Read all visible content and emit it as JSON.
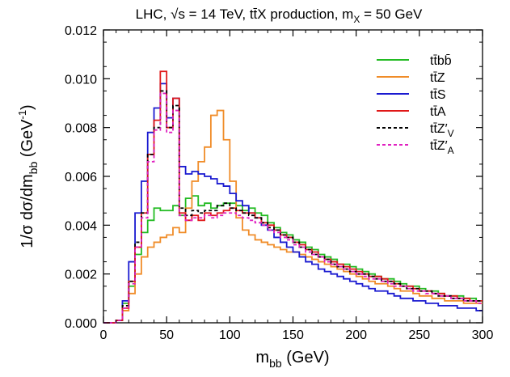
{
  "chart_data": {
    "type": "line",
    "title": "LHC,  √s = 14 TeV,  tt̄X production,  m_X = 50 GeV",
    "title_parts": {
      "prefix": "LHC,  ",
      "sqrt": "√",
      "s_eq": "s = 14 TeV,  tt̄X production,  m",
      "sub": "X",
      "suffix": " = 50 GeV"
    },
    "xlabel": {
      "main": "m",
      "sub": "bb",
      "unit": "  (GeV)"
    },
    "ylabel": {
      "main": "1/σ dσ/dm",
      "sub": "bb",
      "unit": "  (GeV",
      "sup": "-1",
      "close": ")"
    },
    "xlim": [
      0,
      300
    ],
    "ylim": [
      0,
      0.012
    ],
    "xticks": [
      "0",
      "50",
      "100",
      "150",
      "200",
      "250",
      "300"
    ],
    "yticks": [
      "0.000",
      "0.002",
      "0.004",
      "0.006",
      "0.008",
      "0.010",
      "0.012"
    ],
    "x_edges": [
      0,
      5,
      10,
      15,
      20,
      25,
      30,
      35,
      40,
      45,
      50,
      55,
      60,
      65,
      70,
      75,
      80,
      85,
      90,
      95,
      100,
      105,
      110,
      115,
      120,
      125,
      130,
      135,
      140,
      145,
      150,
      155,
      160,
      165,
      170,
      175,
      180,
      185,
      190,
      195,
      200,
      205,
      210,
      215,
      220,
      225,
      230,
      235,
      240,
      245,
      250,
      255,
      260,
      265,
      270,
      275,
      280,
      285,
      290,
      295,
      300
    ],
    "legend_position": "top-right",
    "grid": false,
    "series": [
      {
        "name": "tt̄bb̄",
        "color": "#22bb22",
        "dash": "solid",
        "values": [
          0,
          0,
          0.0001,
          0.0008,
          0.0015,
          0.0028,
          0.0037,
          0.0042,
          0.0047,
          0.0046,
          0.0046,
          0.0048,
          0.0044,
          0.0051,
          0.0052,
          0.0048,
          0.0049,
          0.0047,
          0.0048,
          0.0049,
          0.0049,
          0.0048,
          0.0046,
          0.0047,
          0.0045,
          0.0044,
          0.0041,
          0.0039,
          0.0037,
          0.0036,
          0.0034,
          0.0033,
          0.0031,
          0.003,
          0.0028,
          0.0027,
          0.0026,
          0.0024,
          0.0024,
          0.0023,
          0.0022,
          0.0021,
          0.002,
          0.0019,
          0.0018,
          0.0018,
          0.0017,
          0.0016,
          0.0015,
          0.0015,
          0.0014,
          0.0013,
          0.0013,
          0.0012,
          0.0011,
          0.0011,
          0.0011,
          0.001,
          0.001,
          0.0009
        ]
      },
      {
        "name": "tt̄Z",
        "color": "#f08c28",
        "dash": "solid",
        "values": [
          0,
          0,
          0.0001,
          0.0005,
          0.0012,
          0.002,
          0.0027,
          0.0031,
          0.0033,
          0.0035,
          0.0036,
          0.0039,
          0.0037,
          0.0047,
          0.0058,
          0.0066,
          0.0072,
          0.0085,
          0.0087,
          0.0075,
          0.0058,
          0.0043,
          0.0038,
          0.0036,
          0.0034,
          0.0033,
          0.0032,
          0.0031,
          0.003,
          0.0029,
          0.0029,
          0.0028,
          0.0027,
          0.0026,
          0.0025,
          0.0024,
          0.0023,
          0.0022,
          0.0021,
          0.002,
          0.0019,
          0.0018,
          0.0017,
          0.0016,
          0.0016,
          0.0015,
          0.0014,
          0.0013,
          0.0013,
          0.0012,
          0.0011,
          0.0011,
          0.001,
          0.001,
          0.0009,
          0.0009,
          0.0009,
          0.0008,
          0.0008,
          0.0008
        ]
      },
      {
        "name": "tt̄S",
        "color": "#1a1ad0",
        "dash": "solid",
        "values": [
          0,
          0,
          0.0001,
          0.0009,
          0.0025,
          0.0045,
          0.0058,
          0.0078,
          0.0088,
          0.0098,
          0.0084,
          0.0092,
          0.0064,
          0.0061,
          0.0062,
          0.0061,
          0.006,
          0.0059,
          0.0057,
          0.0056,
          0.0053,
          0.005,
          0.0048,
          0.0045,
          0.0043,
          0.004,
          0.0038,
          0.0035,
          0.0033,
          0.0031,
          0.0029,
          0.0027,
          0.0025,
          0.0024,
          0.0022,
          0.0021,
          0.002,
          0.0019,
          0.0018,
          0.0017,
          0.0016,
          0.0015,
          0.0014,
          0.0013,
          0.0013,
          0.0012,
          0.0011,
          0.001,
          0.001,
          0.0009,
          0.0009,
          0.0008,
          0.0008,
          0.0007,
          0.0007,
          0.0007,
          0.0006,
          0.0006,
          0.0006,
          0.0005
        ]
      },
      {
        "name": "tt̄A",
        "color": "#e01818",
        "dash": "solid",
        "values": [
          0,
          0,
          0.0001,
          0.0006,
          0.0017,
          0.0031,
          0.0045,
          0.0069,
          0.0083,
          0.0103,
          0.008,
          0.0092,
          0.0045,
          0.0042,
          0.0044,
          0.0042,
          0.0045,
          0.0044,
          0.0045,
          0.0046,
          0.0047,
          0.0046,
          0.0045,
          0.0045,
          0.0043,
          0.0041,
          0.004,
          0.0038,
          0.0036,
          0.0035,
          0.0033,
          0.0032,
          0.003,
          0.0029,
          0.0027,
          0.0026,
          0.0025,
          0.0024,
          0.0023,
          0.0022,
          0.0021,
          0.002,
          0.0019,
          0.0019,
          0.0018,
          0.0017,
          0.0016,
          0.0015,
          0.0015,
          0.0014,
          0.0013,
          0.0013,
          0.0012,
          0.0012,
          0.0011,
          0.0011,
          0.001,
          0.001,
          0.0009,
          0.0009
        ]
      },
      {
        "name": "tt̄Z′_V",
        "color": "#000000",
        "dash": "4,3",
        "values": [
          0,
          0,
          0.0001,
          0.0007,
          0.0017,
          0.0033,
          0.0045,
          0.0069,
          0.008,
          0.0095,
          0.008,
          0.0089,
          0.0047,
          0.0044,
          0.0046,
          0.0045,
          0.0046,
          0.0046,
          0.0048,
          0.0049,
          0.0047,
          0.0046,
          0.0045,
          0.0044,
          0.0043,
          0.0041,
          0.0039,
          0.0038,
          0.0036,
          0.0035,
          0.0033,
          0.0031,
          0.003,
          0.0028,
          0.0027,
          0.0026,
          0.0024,
          0.0023,
          0.0022,
          0.0021,
          0.002,
          0.002,
          0.0019,
          0.0018,
          0.0017,
          0.0017,
          0.0016,
          0.0015,
          0.0014,
          0.0014,
          0.0013,
          0.0013,
          0.0012,
          0.0011,
          0.0011,
          0.001,
          0.001,
          0.0009,
          0.0009,
          0.0009
        ]
      },
      {
        "name": "tt̄Z′_A",
        "color": "#e020c0",
        "dash": "4,3",
        "values": [
          0,
          0,
          0.0001,
          0.0006,
          0.0016,
          0.0031,
          0.0043,
          0.0066,
          0.0079,
          0.0094,
          0.0078,
          0.0087,
          0.0044,
          0.0042,
          0.0043,
          0.0043,
          0.0044,
          0.0043,
          0.0044,
          0.0045,
          0.0045,
          0.0044,
          0.0043,
          0.0042,
          0.0041,
          0.004,
          0.0038,
          0.0037,
          0.0035,
          0.0034,
          0.0032,
          0.0031,
          0.0029,
          0.0028,
          0.0027,
          0.0025,
          0.0024,
          0.0023,
          0.0022,
          0.0021,
          0.002,
          0.0019,
          0.0018,
          0.0018,
          0.0017,
          0.0016,
          0.0015,
          0.0015,
          0.0014,
          0.0013,
          0.0013,
          0.0012,
          0.0012,
          0.0011,
          0.0011,
          0.001,
          0.001,
          0.0009,
          0.0009,
          0.0008
        ]
      }
    ]
  }
}
